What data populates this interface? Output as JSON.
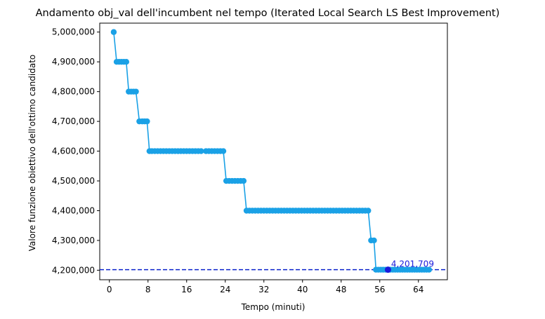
{
  "chart_data": {
    "type": "line",
    "title": "Andamento obj_val dell'incumbent nel tempo (Iterated Local Search LS Best Improvement)",
    "xlabel": "Tempo (minuti)",
    "ylabel": "Valore funzione obiettivo dell'ottimo candidato",
    "xlim": [
      -2,
      70
    ],
    "ylim": [
      4168000,
      5030000
    ],
    "x_ticks": [
      0,
      8,
      16,
      24,
      32,
      40,
      48,
      56,
      64
    ],
    "y_ticks": [
      4200000,
      4300000,
      4400000,
      4500000,
      4600000,
      4700000,
      4800000,
      4900000,
      5000000
    ],
    "y_tick_labels": [
      "4,200,000",
      "4,300,000",
      "4,400,000",
      "4,500,000",
      "4,600,000",
      "4,700,000",
      "4,800,000",
      "4,900,000",
      "5,000,000"
    ],
    "grid": false,
    "line_color": "#1aa1e6",
    "series": [
      {
        "name": "",
        "color": "#1aa1e6",
        "x": [
          0.9,
          1.5,
          2.0,
          2.5,
          3.0,
          3.5,
          4.0,
          4.5,
          5.0,
          5.5,
          6.2,
          6.8,
          7.3,
          7.8,
          8.3,
          8.8,
          9.4,
          10.0,
          10.6,
          11.2,
          11.8,
          12.4,
          13.0,
          13.6,
          14.2,
          14.8,
          15.4,
          16.0,
          16.6,
          17.2,
          17.8,
          18.4,
          19.0,
          20.0,
          20.6,
          21.2,
          21.8,
          22.4,
          23.0,
          23.6,
          24.2,
          24.8,
          25.4,
          26.0,
          26.6,
          27.2,
          27.8,
          28.4,
          29.0,
          29.6,
          30.2,
          30.8,
          31.4,
          32.0,
          32.6,
          33.2,
          33.8,
          34.4,
          35.0,
          35.6,
          36.2,
          36.8,
          37.4,
          38.0,
          38.6,
          39.2,
          39.8,
          40.4,
          41.0,
          41.6,
          42.2,
          42.8,
          43.4,
          44.0,
          44.6,
          45.2,
          45.8,
          46.4,
          47.0,
          47.6,
          48.2,
          48.8,
          49.4,
          50.0,
          50.6,
          51.2,
          51.8,
          52.4,
          53.0,
          53.6,
          54.2,
          54.8,
          55.2,
          55.7,
          56.2,
          56.7,
          57.2,
          57.7,
          58.2,
          58.7,
          59.2,
          59.7,
          60.2,
          60.7,
          61.2,
          61.7,
          62.2,
          62.7,
          63.2,
          63.7,
          64.2,
          64.7,
          65.2,
          65.7,
          66.2
        ],
        "values": [
          5000000,
          4900000,
          4900000,
          4900000,
          4900000,
          4900000,
          4800000,
          4800000,
          4800000,
          4800000,
          4700000,
          4700000,
          4700000,
          4700000,
          4600000,
          4600000,
          4600000,
          4600000,
          4600000,
          4600000,
          4600000,
          4600000,
          4600000,
          4600000,
          4600000,
          4600000,
          4600000,
          4600000,
          4600000,
          4600000,
          4600000,
          4600000,
          4600000,
          4600000,
          4600000,
          4600000,
          4600000,
          4600000,
          4600000,
          4600000,
          4500000,
          4500000,
          4500000,
          4500000,
          4500000,
          4500000,
          4500000,
          4400000,
          4400000,
          4400000,
          4400000,
          4400000,
          4400000,
          4400000,
          4400000,
          4400000,
          4400000,
          4400000,
          4400000,
          4400000,
          4400000,
          4400000,
          4400000,
          4400000,
          4400000,
          4400000,
          4400000,
          4400000,
          4400000,
          4400000,
          4400000,
          4400000,
          4400000,
          4400000,
          4400000,
          4400000,
          4400000,
          4400000,
          4400000,
          4400000,
          4400000,
          4400000,
          4400000,
          4400000,
          4400000,
          4400000,
          4400000,
          4400000,
          4400000,
          4400000,
          4300000,
          4300000,
          4201709,
          4201709,
          4201709,
          4201709,
          4201709,
          4201709,
          4201709,
          4201709,
          4201709,
          4201709,
          4201709,
          4201709,
          4201709,
          4201709,
          4201709,
          4201709,
          4201709,
          4201709,
          4201709,
          4201709,
          4201709,
          4201709,
          4201709
        ]
      }
    ],
    "reference_line": {
      "y": 4201709,
      "style": "dashed",
      "color": "#0a22cc"
    },
    "best_point": {
      "x": 57.7,
      "y": 4201709,
      "color": "#1a1adb"
    },
    "annotation": {
      "text": "4,201,709",
      "x": 58.2,
      "y": 4201709,
      "color": "#1a1adb"
    }
  }
}
